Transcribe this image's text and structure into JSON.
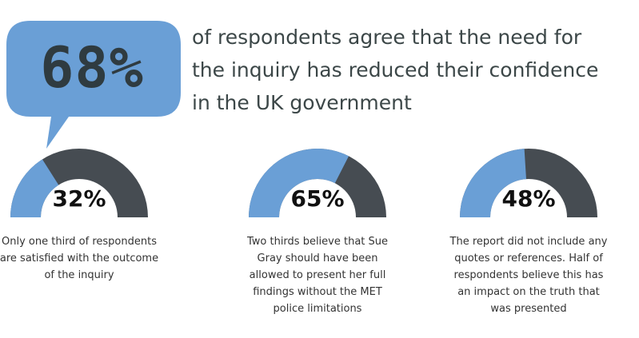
{
  "header": {
    "stat_value": "68%",
    "headline": "of respondents agree that the need for the inquiry has reduced their confidence in the UK government"
  },
  "colors": {
    "blue": "#6a9fd6",
    "dark": "#464c52",
    "bubble": "#6a9fd6",
    "stat_text": "#2f3b40"
  },
  "chart_data": [
    {
      "type": "gauge",
      "value": 32,
      "label": "32%",
      "caption": "Only one third of respondents are satisfied with the outcome of the inquiry"
    },
    {
      "type": "gauge",
      "value": 65,
      "label": "65%",
      "caption": "Two thirds believe that Sue Gray should have been allowed to present her full findings without the MET police limitations"
    },
    {
      "type": "gauge",
      "value": 48,
      "label": "48%",
      "caption": "The report did not include any quotes or references. Half of respondents believe this has an impact on the truth that was presented"
    }
  ]
}
